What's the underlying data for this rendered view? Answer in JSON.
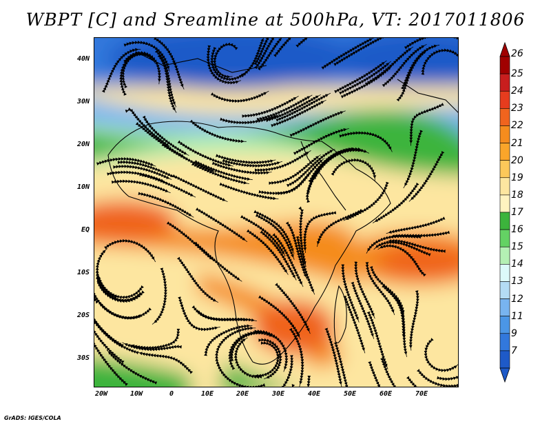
{
  "title": "WBPT [C] and Sreamline at 500hPa, VT: 2017011806",
  "credit": "GrADS: IGES/COLA",
  "map": {
    "lat_labels": [
      "40N",
      "30N",
      "20N",
      "10N",
      "EQ",
      "10S",
      "20S",
      "30S"
    ],
    "lon_labels": [
      "20W",
      "10W",
      "0",
      "10E",
      "20E",
      "30E",
      "40E",
      "50E",
      "60E",
      "70E"
    ]
  },
  "colorbar": {
    "labels": [
      "26",
      "25",
      "24",
      "23",
      "22",
      "21",
      "20",
      "19",
      "18",
      "17",
      "16",
      "15",
      "14",
      "13",
      "12",
      "11",
      "9",
      "7"
    ],
    "colors": [
      "#a00000",
      "#c81e1e",
      "#e63c1e",
      "#f0641e",
      "#f58c1e",
      "#faa52a",
      "#fcc85a",
      "#fde6a0",
      "#fff3c0",
      "#3cb43c",
      "#64d264",
      "#b4f0b4",
      "#dcfafa",
      "#b4dcf5",
      "#78b4f0",
      "#4b96e6",
      "#3278dc",
      "#1e5ac8"
    ]
  }
}
